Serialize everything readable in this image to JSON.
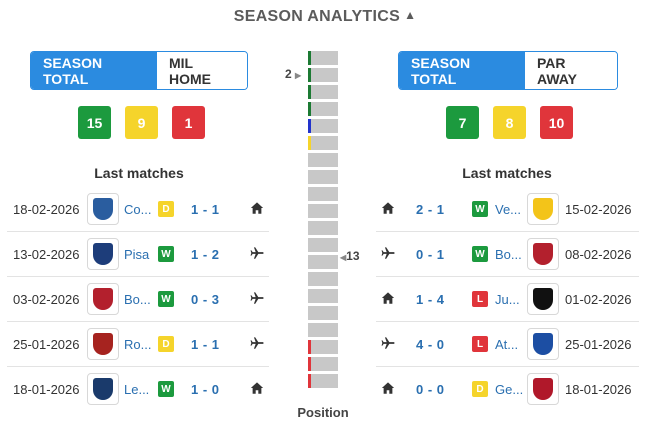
{
  "header": {
    "title": "SEASON ANALYTICS"
  },
  "left": {
    "tabs": [
      "SEASON TOTAL",
      "MIL HOME"
    ],
    "counts": {
      "wins": "15",
      "draws": "9",
      "losses": "1"
    },
    "last_matches_title": "Last matches",
    "matches": [
      {
        "date": "18-02-2026",
        "team": "Como",
        "team_short": "Co...",
        "result": "D",
        "score": "1 - 1",
        "venue": "home",
        "crest": "#2a5d9f"
      },
      {
        "date": "13-02-2026",
        "team": "Pisa",
        "team_short": "Pisa",
        "result": "W",
        "score": "1 - 2",
        "venue": "away",
        "crest": "#1d3d7a"
      },
      {
        "date": "03-02-2026",
        "team": "Bologna",
        "team_short": "Bo...",
        "result": "W",
        "score": "0 - 3",
        "venue": "away",
        "crest": "#b3202d"
      },
      {
        "date": "25-01-2026",
        "team": "Roma",
        "team_short": "Ro...",
        "result": "D",
        "score": "1 - 1",
        "venue": "away",
        "crest": "#a6231f"
      },
      {
        "date": "18-01-2026",
        "team": "Lecce",
        "team_short": "Le...",
        "result": "W",
        "score": "1 - 0",
        "venue": "home",
        "crest": "#1a3a6b"
      }
    ]
  },
  "right": {
    "tabs": [
      "SEASON TOTAL",
      "PAR AWAY"
    ],
    "counts": {
      "wins": "7",
      "draws": "8",
      "losses": "10"
    },
    "last_matches_title": "Last matches",
    "matches": [
      {
        "date": "15-02-2026",
        "team": "Verona",
        "team_short": "Ve...",
        "result": "W",
        "score": "2 - 1",
        "venue": "home",
        "crest": "#f3c419"
      },
      {
        "date": "08-02-2026",
        "team": "Bologna",
        "team_short": "Bo...",
        "result": "W",
        "score": "0 - 1",
        "venue": "away",
        "crest": "#b3202d"
      },
      {
        "date": "01-02-2026",
        "team": "Juventus",
        "team_short": "Ju...",
        "result": "L",
        "score": "1 - 4",
        "venue": "home",
        "crest": "#111111"
      },
      {
        "date": "25-01-2026",
        "team": "Atalanta",
        "team_short": "At...",
        "result": "L",
        "score": "4 - 0",
        "venue": "away",
        "crest": "#1c4ea3"
      },
      {
        "date": "18-01-2026",
        "team": "Genoa",
        "team_short": "Ge...",
        "result": "D",
        "score": "0 - 0",
        "venue": "home",
        "crest": "#b0182a"
      }
    ]
  },
  "position": {
    "title": "Position",
    "left_team_position": "2",
    "right_team_position": "13",
    "total_positions": 20,
    "zone_colors": {
      "1": "#1c7a33",
      "2": "#1c7a33",
      "3": "#1c7a33",
      "4": "#1c7a33",
      "5": "#2233cc",
      "6": "#f5d42b",
      "18": "#e0353b",
      "19": "#e0353b",
      "20": "#e0353b"
    }
  },
  "colors": {
    "accent": "#2b8be0",
    "win": "#1c9a3e",
    "draw": "#f5d42b",
    "loss": "#e0353b"
  }
}
